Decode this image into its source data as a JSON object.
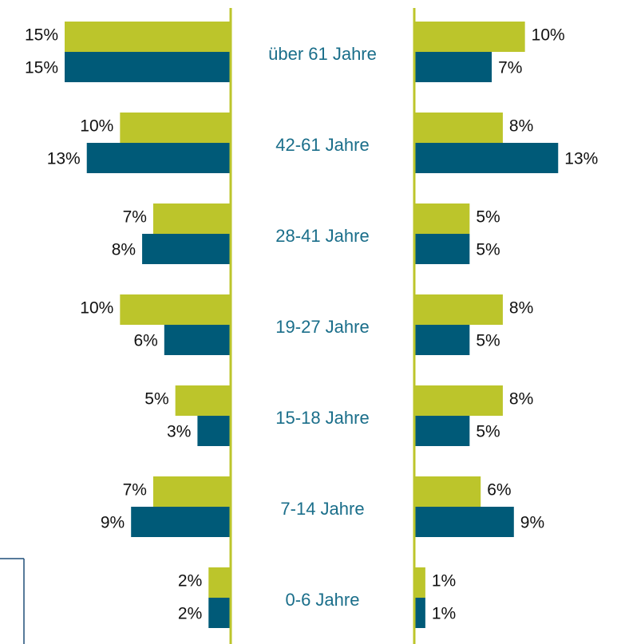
{
  "chart_data": {
    "type": "butterfly-bar",
    "categories": [
      "über 61 Jahre",
      "42-61 Jahre",
      "28-41 Jahre",
      "19-27 Jahre",
      "15-18 Jahre",
      "7-14 Jahre",
      "0-6 Jahre"
    ],
    "xlim": [
      0,
      15
    ],
    "series": [
      {
        "side": "left",
        "color": "#bcc52b",
        "values": [
          15,
          10,
          7,
          10,
          5,
          7,
          2
        ],
        "value_labels": [
          "15%",
          "10%",
          "7%",
          "10%",
          "5%",
          "7%",
          "2%"
        ]
      },
      {
        "side": "left",
        "color": "#005a78",
        "values": [
          15,
          13,
          8,
          6,
          3,
          9,
          2
        ],
        "value_labels": [
          "15%",
          "13%",
          "8%",
          "6%",
          "3%",
          "9%",
          "2%"
        ]
      },
      {
        "side": "right",
        "color": "#bcc52b",
        "values": [
          10,
          8,
          5,
          8,
          8,
          6,
          1
        ],
        "value_labels": [
          "10%",
          "8%",
          "5%",
          "8%",
          "8%",
          "6%",
          "1%"
        ]
      },
      {
        "side": "right",
        "color": "#005a78",
        "values": [
          7,
          13,
          5,
          5,
          5,
          9,
          1
        ],
        "value_labels": [
          "7%",
          "13%",
          "5%",
          "5%",
          "5%",
          "9%",
          "1%"
        ]
      }
    ]
  }
}
